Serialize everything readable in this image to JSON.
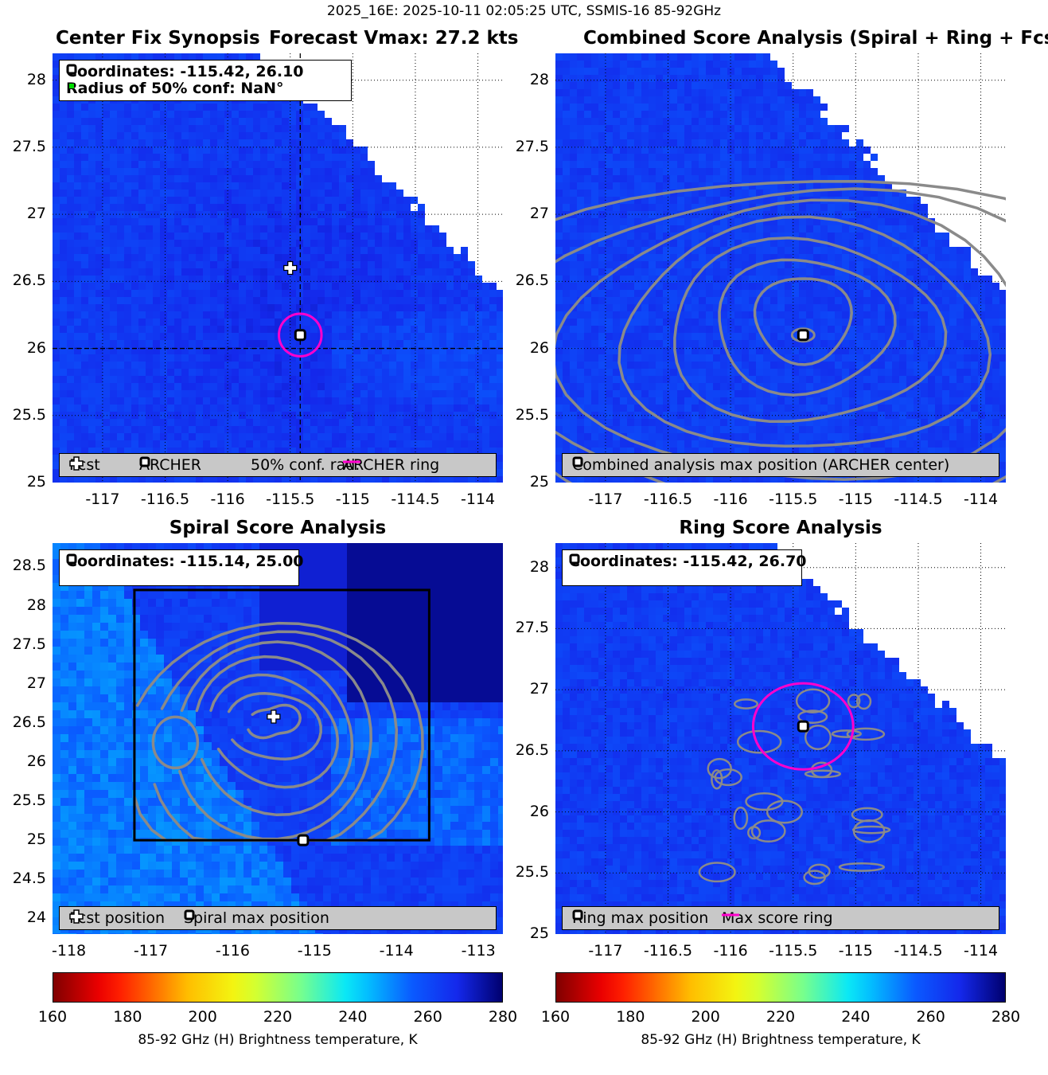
{
  "suptitle": "2025_16E: 2025-10-11 02:05:25 UTC, SSMIS-16 85-92GHz",
  "colors": {
    "magenta": "#ff00cc",
    "green": "#00dd00",
    "contour": "#8a8a8a",
    "land": "#ffffff"
  },
  "panel1": {
    "title_left": "Center Fix Synopsis",
    "title_right": "Forecast Vmax: 27.2 kts",
    "info_coords": "Coordinates: -115.42, 26.10",
    "info_radius": "Radius of 50% conf: NaN°",
    "legend": {
      "fcst": "Fcst",
      "archer": "ARCHER",
      "conf": "50% conf. rad.",
      "ring": "ARCHER ring"
    }
  },
  "panel2": {
    "title": "Combined Score Analysis (Spiral + Ring + Fcst_Pe",
    "legend": {
      "max": "Combined analysis max position (ARCHER center)"
    }
  },
  "panel3": {
    "title": "Spiral Score Analysis",
    "info_coords": "Coordinates: -115.14, 25.00",
    "legend": {
      "fcst": "Fcst position",
      "spiral": "Spiral max position"
    }
  },
  "panel4": {
    "title": "Ring Score Analysis",
    "info_coords": "Coordinates: -115.42, 26.70",
    "legend": {
      "ring_max": "Ring max position",
      "score_ring": "Max score ring"
    }
  },
  "colorbar": {
    "label": "85-92 GHz (H) Brightness temperature, K",
    "ticks": [
      "160",
      "180",
      "200",
      "220",
      "240",
      "260",
      "280"
    ]
  },
  "chart_data": [
    {
      "type": "heatmap",
      "title": "Center Fix Synopsis",
      "subtitle": "Forecast Vmax: 27.2 kts",
      "xlim": [
        -117.4,
        -113.8
      ],
      "ylim": [
        25,
        28.2
      ],
      "xticks": [
        "-117",
        "-116.5",
        "-116",
        "-115.5",
        "-115",
        "-114.5",
        "-114"
      ],
      "yticks": [
        "25",
        "25.5",
        "26",
        "26.5",
        "27",
        "27.5",
        "28"
      ],
      "clim": [
        160,
        280
      ],
      "markers": [
        {
          "name": "Fcst",
          "x": -115.5,
          "y": 26.6
        },
        {
          "name": "ARCHER",
          "x": -115.42,
          "y": 26.1
        }
      ],
      "ring": {
        "x": -115.42,
        "y": 26.1,
        "radius_deg": 0.17
      },
      "crosshair": {
        "x": -115.42,
        "y": 26.0
      }
    },
    {
      "type": "heatmap",
      "title": "Combined Score Analysis (Spiral + Ring + Fcst_Pe",
      "xlim": [
        -117.4,
        -113.8
      ],
      "ylim": [
        25,
        28.2
      ],
      "xticks": [
        "-117",
        "-116.5",
        "-116",
        "-115.5",
        "-115",
        "-114.5",
        "-114"
      ],
      "yticks": [
        "25",
        "25.5",
        "26",
        "26.5",
        "27",
        "27.5",
        "28"
      ],
      "clim": [
        160,
        280
      ],
      "markers": [
        {
          "name": "Combined analysis max position",
          "x": -115.42,
          "y": 26.1
        }
      ]
    },
    {
      "type": "heatmap",
      "title": "Spiral Score Analysis",
      "xlim": [
        -118.2,
        -112.7
      ],
      "ylim": [
        23.8,
        28.8
      ],
      "xticks": [
        "-118",
        "-117",
        "-116",
        "-115",
        "-114",
        "-113"
      ],
      "yticks": [
        "24",
        "24.5",
        "25",
        "25.5",
        "26",
        "26.5",
        "27",
        "27.5",
        "28",
        "28.5"
      ],
      "clim": [
        160,
        280
      ],
      "search_box": {
        "x": [
          -117.2,
          -113.6
        ],
        "y": [
          25.0,
          28.2
        ]
      },
      "markers": [
        {
          "name": "Fcst position",
          "x": -115.5,
          "y": 26.58
        },
        {
          "name": "Spiral max position",
          "x": -115.14,
          "y": 25.0
        }
      ]
    },
    {
      "type": "heatmap",
      "title": "Ring Score Analysis",
      "xlim": [
        -117.4,
        -113.8
      ],
      "ylim": [
        25,
        28.2
      ],
      "xticks": [
        "-117",
        "-116.5",
        "-116",
        "-115.5",
        "-115",
        "-114.5",
        "-114"
      ],
      "yticks": [
        "25",
        "25.5",
        "26",
        "26.5",
        "27",
        "27.5",
        "28"
      ],
      "clim": [
        160,
        280
      ],
      "markers": [
        {
          "name": "Ring max position",
          "x": -115.42,
          "y": 26.7
        }
      ],
      "ring": {
        "x": -115.42,
        "y": 26.7,
        "radius_deg": 0.4
      }
    }
  ]
}
